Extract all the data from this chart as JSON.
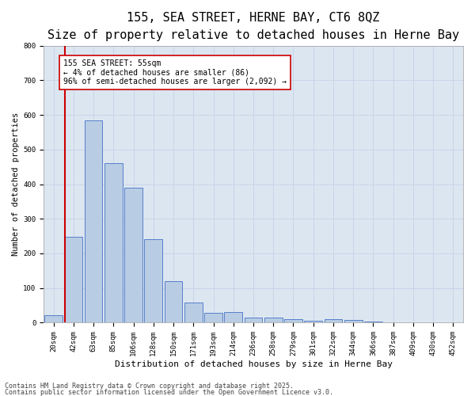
{
  "title": "155, SEA STREET, HERNE BAY, CT6 8QZ",
  "subtitle": "Size of property relative to detached houses in Herne Bay",
  "xlabel": "Distribution of detached houses by size in Herne Bay",
  "ylabel": "Number of detached properties",
  "categories": [
    "20sqm",
    "42sqm",
    "63sqm",
    "85sqm",
    "106sqm",
    "128sqm",
    "150sqm",
    "171sqm",
    "193sqm",
    "214sqm",
    "236sqm",
    "258sqm",
    "279sqm",
    "301sqm",
    "322sqm",
    "344sqm",
    "366sqm",
    "387sqm",
    "409sqm",
    "430sqm",
    "452sqm"
  ],
  "values": [
    22,
    248,
    585,
    460,
    390,
    240,
    120,
    58,
    28,
    30,
    14,
    14,
    10,
    5,
    10,
    8,
    3,
    2,
    0,
    0,
    2
  ],
  "bar_color": "#b8cce4",
  "bar_edge_color": "#4472c4",
  "grid_color": "#c8d4e8",
  "bg_color": "#dce6f1",
  "vline_color": "#cc0000",
  "annotation_text": "155 SEA STREET: 55sqm\n← 4% of detached houses are smaller (86)\n96% of semi-detached houses are larger (2,092) →",
  "annotation_box_color": "#ffffff",
  "annotation_box_edge_color": "#cc0000",
  "ylim": [
    0,
    800
  ],
  "yticks": [
    0,
    100,
    200,
    300,
    400,
    500,
    600,
    700,
    800
  ],
  "footer_line1": "Contains HM Land Registry data © Crown copyright and database right 2025.",
  "footer_line2": "Contains public sector information licensed under the Open Government Licence v3.0.",
  "title_fontsize": 11,
  "subtitle_fontsize": 9,
  "xlabel_fontsize": 8,
  "ylabel_fontsize": 7.5,
  "tick_fontsize": 6.5,
  "annotation_fontsize": 7,
  "footer_fontsize": 6
}
